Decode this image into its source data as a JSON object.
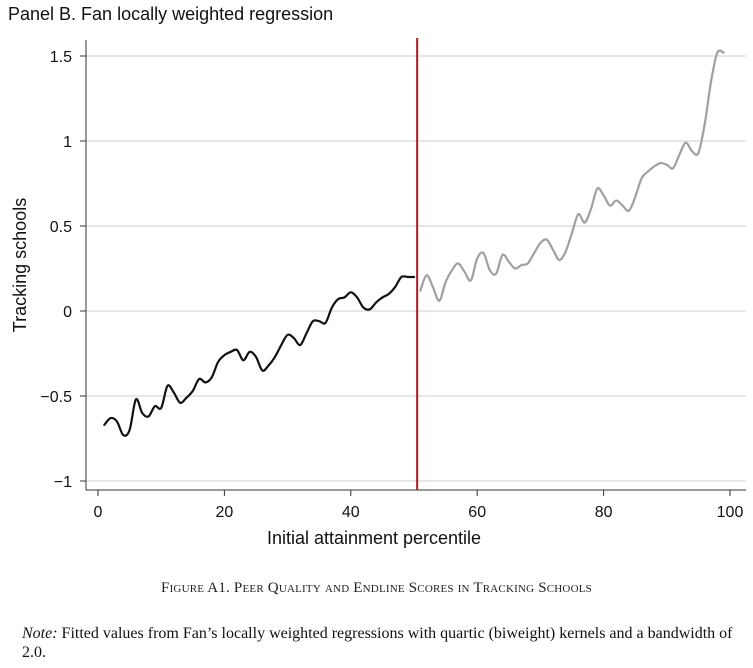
{
  "panel_title": "Panel B. Fan locally weighted regression",
  "caption": "Figure A1. Peer Quality and Endline Scores in Tracking Schools",
  "note": {
    "label": "Note:",
    "text": "Fitted values from Fan’s locally weighted regressions with quartic (biweight) kernels and a bandwidth of 2.0."
  },
  "colors": {
    "left_series": "#111111",
    "right_series": "#a0a0a0",
    "cutoff_line": "#b0182a",
    "grid": "#cfcfcf"
  },
  "chart_data": {
    "type": "line",
    "title": "",
    "xlabel": "Initial attainment percentile",
    "ylabel": "Tracking schools",
    "xlim": [
      0,
      100
    ],
    "ylim": [
      -1.1,
      1.6
    ],
    "xticks": [
      0,
      20,
      40,
      60,
      80,
      100
    ],
    "yticks": [
      -1,
      -0.5,
      0,
      0.5,
      1,
      1.5
    ],
    "ytick_labels": [
      "−1",
      "−0.5",
      "0",
      "0.5",
      "1",
      "1.5"
    ],
    "grid": "horizontal",
    "cutoff_x": 50.5,
    "series": [
      {
        "style": "left",
        "x": [
          1,
          2,
          3,
          4,
          5,
          6,
          7,
          8,
          9,
          10,
          11,
          12,
          13,
          14,
          15,
          16,
          17,
          18,
          19,
          20,
          21,
          22,
          23,
          24,
          25,
          26,
          27,
          28,
          29,
          30,
          31,
          32,
          33,
          34,
          35,
          36,
          37,
          38,
          39,
          40,
          41,
          42,
          43,
          44,
          45,
          46,
          47,
          48,
          49,
          50
        ],
        "y": [
          -0.67,
          -0.63,
          -0.65,
          -0.73,
          -0.7,
          -0.52,
          -0.6,
          -0.62,
          -0.56,
          -0.57,
          -0.44,
          -0.48,
          -0.54,
          -0.51,
          -0.47,
          -0.4,
          -0.42,
          -0.39,
          -0.3,
          -0.26,
          -0.24,
          -0.23,
          -0.29,
          -0.24,
          -0.27,
          -0.35,
          -0.32,
          -0.27,
          -0.2,
          -0.14,
          -0.16,
          -0.2,
          -0.13,
          -0.06,
          -0.06,
          -0.07,
          0.02,
          0.07,
          0.08,
          0.11,
          0.08,
          0.02,
          0.01,
          0.05,
          0.08,
          0.1,
          0.14,
          0.2,
          0.2,
          0.2
        ]
      },
      {
        "style": "right",
        "x": [
          51,
          52,
          53,
          54,
          55,
          56,
          57,
          58,
          59,
          60,
          61,
          62,
          63,
          64,
          65,
          66,
          67,
          68,
          69,
          70,
          71,
          72,
          73,
          74,
          75,
          76,
          77,
          78,
          79,
          80,
          81,
          82,
          83,
          84,
          85,
          86,
          87,
          88,
          89,
          90,
          91,
          92,
          93,
          94,
          95,
          96,
          97,
          98,
          99
        ],
        "y": [
          0.12,
          0.21,
          0.14,
          0.06,
          0.17,
          0.24,
          0.28,
          0.23,
          0.18,
          0.31,
          0.34,
          0.24,
          0.22,
          0.33,
          0.29,
          0.25,
          0.27,
          0.28,
          0.34,
          0.4,
          0.42,
          0.36,
          0.3,
          0.35,
          0.46,
          0.57,
          0.52,
          0.6,
          0.72,
          0.68,
          0.62,
          0.65,
          0.62,
          0.59,
          0.67,
          0.78,
          0.82,
          0.85,
          0.87,
          0.86,
          0.84,
          0.92,
          0.99,
          0.94,
          0.93,
          1.1,
          1.35,
          1.52,
          1.52
        ]
      }
    ]
  }
}
